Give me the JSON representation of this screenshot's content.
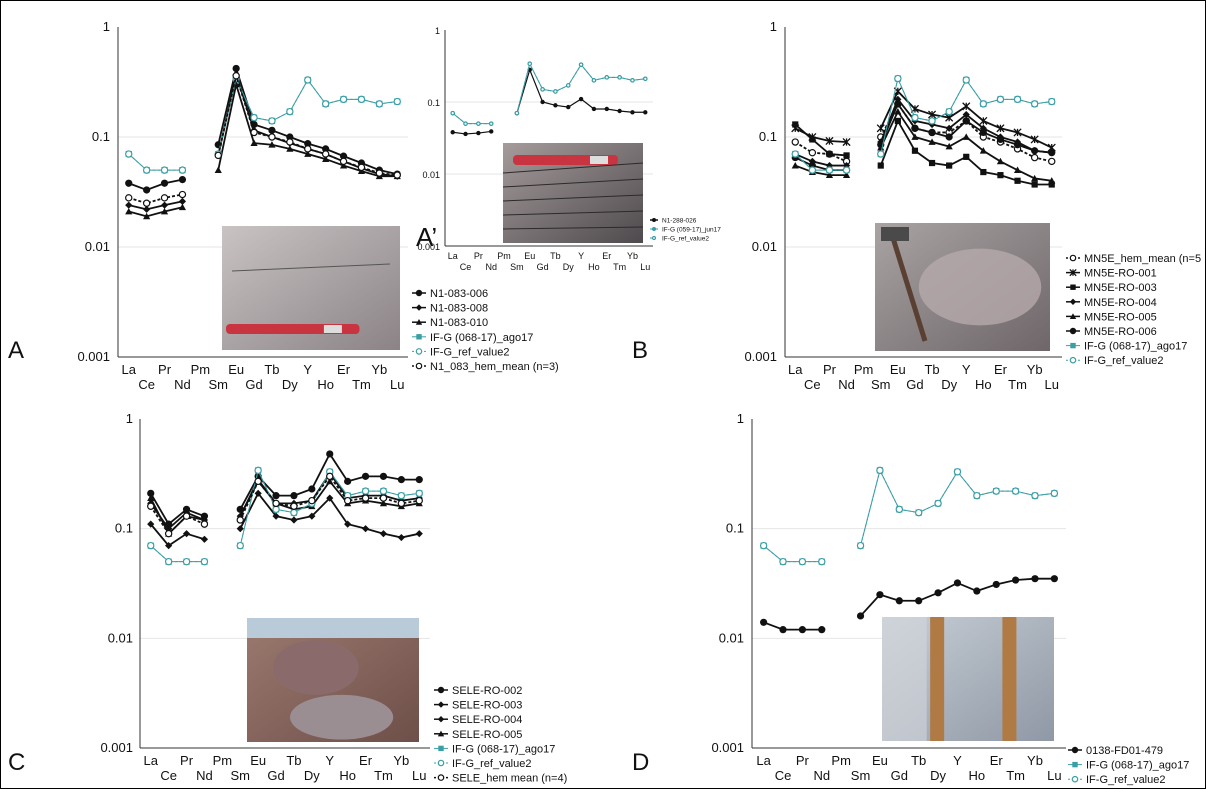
{
  "figure": {
    "colors": {
      "teal": "#3a9ea5",
      "black": "#111111"
    }
  },
  "chart_data": [
    {
      "id": "A",
      "type": "line",
      "panel_label": "A",
      "log_scale": true,
      "ylim": [
        0.001,
        1
      ],
      "y_ticks": [
        "1",
        "0.1",
        "0.01",
        "0.001"
      ],
      "categories_top": [
        "La",
        "Pr",
        "Pm",
        "Eu",
        "Tb",
        "Y",
        "Er",
        "Yb"
      ],
      "categories_bottom": [
        "Ce",
        "Nd",
        "Sm",
        "Gd",
        "Dy",
        "Ho",
        "Tm",
        "Lu"
      ],
      "categories": [
        "La",
        "Ce",
        "Pr",
        "Nd",
        "Pm",
        "Sm",
        "Eu",
        "Gd",
        "Tb",
        "Dy",
        "Y",
        "Ho",
        "Er",
        "Tm",
        "Yb",
        "Lu"
      ],
      "legend_position": "bottom-right",
      "photo": "outcrop photo with pen",
      "series": [
        {
          "name": "N1-083-006",
          "marker": "circle",
          "color": "#111111",
          "values": [
            0.038,
            0.033,
            0.038,
            0.041,
            null,
            0.085,
            0.42,
            0.13,
            0.115,
            0.1,
            0.087,
            0.078,
            0.067,
            0.058,
            0.05,
            0.046
          ]
        },
        {
          "name": "N1-083-008",
          "marker": "diamond",
          "color": "#111111",
          "values": [
            0.024,
            0.022,
            0.024,
            0.026,
            null,
            0.068,
            0.37,
            0.115,
            0.1,
            0.088,
            0.078,
            0.07,
            0.06,
            0.052,
            0.046,
            0.044
          ]
        },
        {
          "name": "N1-083-010",
          "marker": "triangle",
          "color": "#111111",
          "values": [
            0.021,
            0.019,
            0.021,
            0.023,
            null,
            0.05,
            0.3,
            0.088,
            0.085,
            0.078,
            0.07,
            0.063,
            0.055,
            0.049,
            0.044,
            0.044
          ]
        },
        {
          "name": "IF-G (068-17)_ago17",
          "marker": "star",
          "color": "#3a9ea5",
          "values": [
            0.07,
            0.05,
            0.05,
            0.05,
            null,
            0.07,
            0.34,
            0.15,
            0.14,
            0.17,
            0.33,
            0.2,
            0.22,
            0.22,
            0.2,
            0.21
          ]
        },
        {
          "name": "IF-G_ref_value2",
          "marker": "open-circle",
          "color": "#3a9ea5",
          "values": [
            0.07,
            0.05,
            0.05,
            0.05,
            null,
            0.07,
            0.34,
            0.15,
            0.14,
            0.17,
            0.33,
            0.2,
            0.22,
            0.22,
            0.2,
            0.21
          ]
        },
        {
          "name": "N1_083_hem_mean (n=3)",
          "marker": "open-circle",
          "color": "#111111",
          "values": [
            0.028,
            0.025,
            0.028,
            0.03,
            null,
            0.068,
            0.36,
            0.11,
            0.1,
            0.09,
            0.078,
            0.07,
            0.06,
            0.053,
            0.047,
            0.045
          ]
        }
      ]
    },
    {
      "id": "A2",
      "type": "line",
      "panel_label": "A’",
      "log_scale": true,
      "ylim": [
        0.001,
        1
      ],
      "y_ticks": [
        "1",
        "0.1",
        "0.01",
        "0.001"
      ],
      "categories_top": [
        "La",
        "Pr",
        "Pm",
        "Eu",
        "Tb",
        "Y",
        "Er",
        "Yb"
      ],
      "categories_bottom": [
        "Ce",
        "Nd",
        "Sm",
        "Gd",
        "Dy",
        "Ho",
        "Tm",
        "Lu"
      ],
      "categories": [
        "La",
        "Ce",
        "Pr",
        "Nd",
        "Pm",
        "Sm",
        "Eu",
        "Gd",
        "Tb",
        "Dy",
        "Y",
        "Ho",
        "Er",
        "Tm",
        "Yb",
        "Lu"
      ],
      "legend_position": "bottom-right",
      "photo": "drill core photo with pen",
      "series": [
        {
          "name": "N1-288-026",
          "marker": "dot",
          "color": "#111111",
          "values": [
            0.038,
            0.036,
            0.037,
            0.039,
            null,
            0.07,
            0.28,
            0.1,
            0.09,
            0.085,
            0.11,
            0.08,
            0.08,
            0.075,
            0.072,
            0.072
          ]
        },
        {
          "name": "IF-G (059-17)_jun17",
          "marker": "dot",
          "color": "#3a9ea5",
          "values": [
            0.07,
            0.05,
            0.05,
            0.05,
            null,
            0.07,
            0.34,
            0.15,
            0.14,
            0.17,
            0.33,
            0.2,
            0.22,
            0.22,
            0.2,
            0.21
          ]
        },
        {
          "name": "IF-G_ref_value2",
          "marker": "open-dot",
          "color": "#3a9ea5",
          "values": [
            0.07,
            0.05,
            0.05,
            0.05,
            null,
            0.07,
            0.34,
            0.15,
            0.14,
            0.17,
            0.33,
            0.2,
            0.22,
            0.22,
            0.2,
            0.21
          ]
        }
      ]
    },
    {
      "id": "B",
      "type": "line",
      "panel_label": "B",
      "log_scale": true,
      "ylim": [
        0.001,
        1
      ],
      "y_ticks": [
        "1",
        "0.1",
        "0.01",
        "0.001"
      ],
      "categories_top": [
        "La",
        "Pr",
        "Pm",
        "Eu",
        "Tb",
        "Y",
        "Er",
        "Yb"
      ],
      "categories_bottom": [
        "Ce",
        "Nd",
        "Sm",
        "Gd",
        "Dy",
        "Ho",
        "Tm",
        "Lu"
      ],
      "categories": [
        "La",
        "Ce",
        "Pr",
        "Nd",
        "Pm",
        "Sm",
        "Eu",
        "Gd",
        "Tb",
        "Dy",
        "Y",
        "Ho",
        "Er",
        "Tm",
        "Yb",
        "Lu"
      ],
      "legend_position": "bottom-right",
      "photo": "rock sample with hammer",
      "series": [
        {
          "name": "MN5E_hem_mean (n=5",
          "marker": "open-circle",
          "color": "#111111",
          "values": [
            0.09,
            0.072,
            0.07,
            0.06,
            null,
            0.1,
            0.2,
            0.12,
            0.11,
            0.11,
            0.14,
            0.1,
            0.09,
            0.078,
            0.065,
            0.06
          ]
        },
        {
          "name": "MN5E-RO-001",
          "marker": "asterisk",
          "color": "#111111",
          "values": [
            0.12,
            0.1,
            0.092,
            0.09,
            null,
            0.12,
            0.26,
            0.18,
            0.16,
            0.15,
            0.19,
            0.14,
            0.12,
            0.11,
            0.095,
            0.08
          ]
        },
        {
          "name": "MN5E-RO-003",
          "marker": "square",
          "color": "#111111",
          "values": [
            0.13,
            0.095,
            0.07,
            0.068,
            null,
            0.055,
            0.14,
            0.075,
            0.058,
            0.055,
            0.066,
            0.048,
            0.045,
            0.04,
            0.037,
            0.037
          ]
        },
        {
          "name": "MN5E-RO-004",
          "marker": "diamond",
          "color": "#111111",
          "values": [
            0.07,
            0.06,
            0.055,
            0.055,
            null,
            0.09,
            0.22,
            0.14,
            0.13,
            0.12,
            0.16,
            0.12,
            0.1,
            0.09,
            0.075,
            0.072
          ]
        },
        {
          "name": "MN5E-RO-005",
          "marker": "triangle",
          "color": "#111111",
          "values": [
            0.055,
            0.048,
            0.045,
            0.045,
            null,
            0.08,
            0.17,
            0.1,
            0.09,
            0.082,
            0.1,
            0.075,
            0.06,
            0.05,
            0.042,
            0.04
          ]
        },
        {
          "name": "MN5E-RO-006",
          "marker": "circle",
          "color": "#111111",
          "values": [
            0.065,
            0.055,
            0.05,
            0.05,
            null,
            0.085,
            0.2,
            0.12,
            0.11,
            0.1,
            0.14,
            0.11,
            0.095,
            0.085,
            0.075,
            0.072
          ]
        },
        {
          "name": "IF-G (068-17)_ago17",
          "marker": "star",
          "color": "#3a9ea5",
          "values": [
            0.07,
            0.05,
            0.05,
            0.05,
            null,
            0.07,
            0.34,
            0.15,
            0.14,
            0.17,
            0.33,
            0.2,
            0.22,
            0.22,
            0.2,
            0.21
          ]
        },
        {
          "name": "IF-G_ref_value2",
          "marker": "open-circle",
          "color": "#3a9ea5",
          "values": [
            0.07,
            0.05,
            0.05,
            0.05,
            null,
            0.07,
            0.34,
            0.15,
            0.14,
            0.17,
            0.33,
            0.2,
            0.22,
            0.22,
            0.2,
            0.21
          ]
        }
      ]
    },
    {
      "id": "C",
      "type": "line",
      "panel_label": "C",
      "log_scale": true,
      "ylim": [
        0.001,
        1
      ],
      "y_ticks": [
        "1",
        "0.1",
        "0.01",
        "0.001"
      ],
      "categories_top": [
        "La",
        "Pr",
        "Pm",
        "Eu",
        "Tb",
        "Y",
        "Er",
        "Yb"
      ],
      "categories_bottom": [
        "Ce",
        "Nd",
        "Sm",
        "Gd",
        "Dy",
        "Ho",
        "Tm",
        "Lu"
      ],
      "categories": [
        "La",
        "Ce",
        "Pr",
        "Nd",
        "Pm",
        "Sm",
        "Eu",
        "Gd",
        "Tb",
        "Dy",
        "Y",
        "Ho",
        "Er",
        "Tm",
        "Yb",
        "Lu"
      ],
      "legend_position": "bottom-right",
      "photo": "outcrop landscape photo",
      "series": [
        {
          "name": "SELE-RO-002",
          "marker": "circle",
          "color": "#111111",
          "values": [
            0.21,
            0.11,
            0.15,
            0.13,
            null,
            0.15,
            0.3,
            0.2,
            0.2,
            0.23,
            0.48,
            0.27,
            0.3,
            0.3,
            0.28,
            0.28
          ]
        },
        {
          "name": "SELE-RO-003",
          "marker": "diamond",
          "color": "#111111",
          "values": [
            0.17,
            0.1,
            0.14,
            0.12,
            null,
            0.13,
            0.27,
            0.17,
            0.17,
            0.18,
            0.32,
            0.19,
            0.2,
            0.2,
            0.18,
            0.19
          ]
        },
        {
          "name": "SELE-RO-004",
          "marker": "diamond",
          "color": "#111111",
          "values": [
            0.11,
            0.07,
            0.09,
            0.08,
            null,
            0.1,
            0.21,
            0.13,
            0.12,
            0.13,
            0.19,
            0.11,
            0.1,
            0.09,
            0.083,
            0.09
          ]
        },
        {
          "name": "SELE-RO-005",
          "marker": "triangle",
          "color": "#111111",
          "values": [
            0.19,
            0.09,
            0.13,
            0.12,
            null,
            0.13,
            0.28,
            0.17,
            0.15,
            0.16,
            0.27,
            0.17,
            0.18,
            0.17,
            0.16,
            0.17
          ]
        },
        {
          "name": "IF-G (068-17)_ago17",
          "marker": "star",
          "color": "#3a9ea5",
          "values": [
            0.07,
            0.05,
            0.05,
            0.05,
            null,
            0.07,
            0.34,
            0.15,
            0.14,
            0.17,
            0.33,
            0.2,
            0.22,
            0.22,
            0.2,
            0.21
          ]
        },
        {
          "name": "IF-G_ref_value2",
          "marker": "open-circle",
          "color": "#3a9ea5",
          "values": [
            0.07,
            0.05,
            0.05,
            0.05,
            null,
            0.07,
            0.34,
            0.15,
            0.14,
            0.17,
            0.33,
            0.2,
            0.22,
            0.22,
            0.2,
            0.21
          ]
        },
        {
          "name": "SELE_hem mean (n=4)",
          "marker": "open-circle",
          "color": "#111111",
          "values": [
            0.16,
            0.09,
            0.13,
            0.11,
            null,
            0.12,
            0.27,
            0.17,
            0.16,
            0.18,
            0.3,
            0.18,
            0.19,
            0.19,
            0.17,
            0.18
          ]
        }
      ]
    },
    {
      "id": "D",
      "type": "line",
      "panel_label": "D",
      "log_scale": true,
      "ylim": [
        0.001,
        1
      ],
      "y_ticks": [
        "1",
        "0.1",
        "0.01",
        "0.001"
      ],
      "categories_top": [
        "La",
        "Pr",
        "Pm",
        "Eu",
        "Tb",
        "Y",
        "Er",
        "Yb"
      ],
      "categories_bottom": [
        "Ce",
        "Nd",
        "Sm",
        "Gd",
        "Dy",
        "Ho",
        "Tm",
        "Lu"
      ],
      "categories": [
        "La",
        "Ce",
        "Pr",
        "Nd",
        "Pm",
        "Sm",
        "Eu",
        "Gd",
        "Tb",
        "Dy",
        "Y",
        "Ho",
        "Er",
        "Tm",
        "Yb",
        "Lu"
      ],
      "legend_position": "bottom-right",
      "photo": "drill core tray photo",
      "series": [
        {
          "name": "0138-FD01-479",
          "marker": "circle",
          "color": "#111111",
          "values": [
            0.014,
            0.012,
            0.012,
            0.012,
            null,
            0.016,
            0.025,
            0.022,
            0.022,
            0.026,
            0.032,
            0.027,
            0.031,
            0.034,
            0.035,
            0.035
          ]
        },
        {
          "name": "IF-G (068-17)_ago17",
          "marker": "star",
          "color": "#3a9ea5",
          "values": [
            0.07,
            0.05,
            0.05,
            0.05,
            null,
            0.07,
            0.34,
            0.15,
            0.14,
            0.17,
            0.33,
            0.2,
            0.22,
            0.22,
            0.2,
            0.21
          ]
        },
        {
          "name": "IF-G_ref_value2",
          "marker": "open-circle",
          "color": "#3a9ea5",
          "values": [
            0.07,
            0.05,
            0.05,
            0.05,
            null,
            0.07,
            0.34,
            0.15,
            0.14,
            0.17,
            0.33,
            0.2,
            0.22,
            0.22,
            0.2,
            0.21
          ]
        }
      ]
    }
  ]
}
